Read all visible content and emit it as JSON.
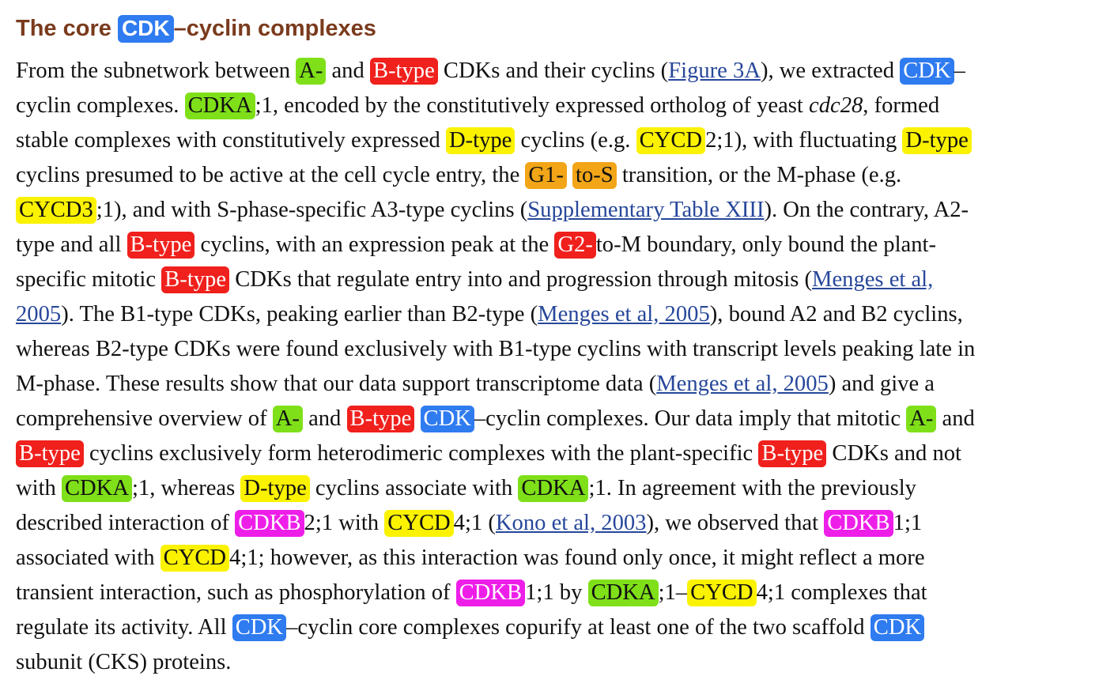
{
  "heading": {
    "pre": "The core ",
    "tag": "CDK",
    "post": "–cyclin complexes"
  },
  "colors": {
    "heading": "#7a3b1d",
    "cdk": "#2f7bf0",
    "b_type": "#f0201c",
    "a_type": "#7fe019",
    "d_type": "#fbf200",
    "g1_s": "#f2a517",
    "cdkb": "#ee1ee9",
    "link": "#27479a"
  },
  "tags": {
    "a_dash": "A-",
    "b_type": "B-type",
    "cdk": "CDK",
    "cdka": "CDKA",
    "d_type": "D-type",
    "cycd": "CYCD",
    "cycd3": "CYCD3",
    "g1": "G1-",
    "to_s": "to-S",
    "g2": "G2-",
    "cdkb": "CDKB"
  },
  "links": {
    "figure3a": "Figure 3A",
    "supp13": "Supplementary Table XIII",
    "menges_a": "Menges et al,",
    "menges_b": "2005",
    "menges_full": "Menges et al, 2005",
    "kono": "Kono et al, 2003"
  },
  "text": {
    "l1a": "From the subnetwork between ",
    "l1b": " and ",
    "l1c": " CDKs and their cyclins (",
    "l1d": "), we extracted ",
    "l1e": "–",
    "l2a": "cyclin complexes. ",
    "l2b": ";1, encoded by the constitutively expressed ortholog of yeast ",
    "l2c": "cdc28",
    "l2d": ", formed",
    "l3a": "stable complexes with constitutively expressed ",
    "l3b": " cyclins (e.g. ",
    "l3c": "2;1), with fluctuating ",
    "l4a": "cyclins presumed to be active at the cell cycle entry, the ",
    "l4b": " transition, or the M-phase (e.g.",
    "l5a": ";1), and with S-phase-specific A3-type cyclins (",
    "l5b": "). On the contrary, A2-",
    "l6a": "type and all ",
    "l6b": " cyclins, with an expression peak at the ",
    "l6c": "to-M boundary, only bound the plant-",
    "l7a": "specific mitotic ",
    "l7b": " CDKs that regulate entry into and progression through mitosis (",
    "l8a": "). The B1-type CDKs, peaking earlier than B2-type (",
    "l8b": "), bound A2 and B2 cyclins,",
    "l9": "whereas B2-type CDKs were found exclusively with B1-type cyclins with transcript levels peaking late in",
    "l10a": "M-phase. These results show that our data support transcriptome data (",
    "l10b": ") and give a",
    "l11a": "comprehensive overview of ",
    "l11b": " and ",
    "l11c": "–cyclin complexes. Our data imply that mitotic ",
    "l11d": " and",
    "l12a": " cyclins exclusively form heterodimeric complexes with the plant-specific ",
    "l12b": " CDKs and not",
    "l13a": "with ",
    "l13b": ";1, whereas ",
    "l13c": " cyclins associate with ",
    "l13d": ";1. In agreement with the previously",
    "l14a": "described interaction of ",
    "l14b": "2;1 with ",
    "l14c": "4;1 (",
    "l14d": "), we observed that ",
    "l14e": "1;1",
    "l15a": "associated with ",
    "l15b": "4;1; however, as this interaction was found only once, it might reflect a more",
    "l16a": "transient interaction, such as phosphorylation of ",
    "l16b": "1;1 by ",
    "l16c": ";1–",
    "l16d": "4;1 complexes that",
    "l17a": "regulate its activity. All ",
    "l17b": "–cyclin core complexes copurify at least one of the two scaffold ",
    "l18": "subunit (CKS) proteins."
  }
}
